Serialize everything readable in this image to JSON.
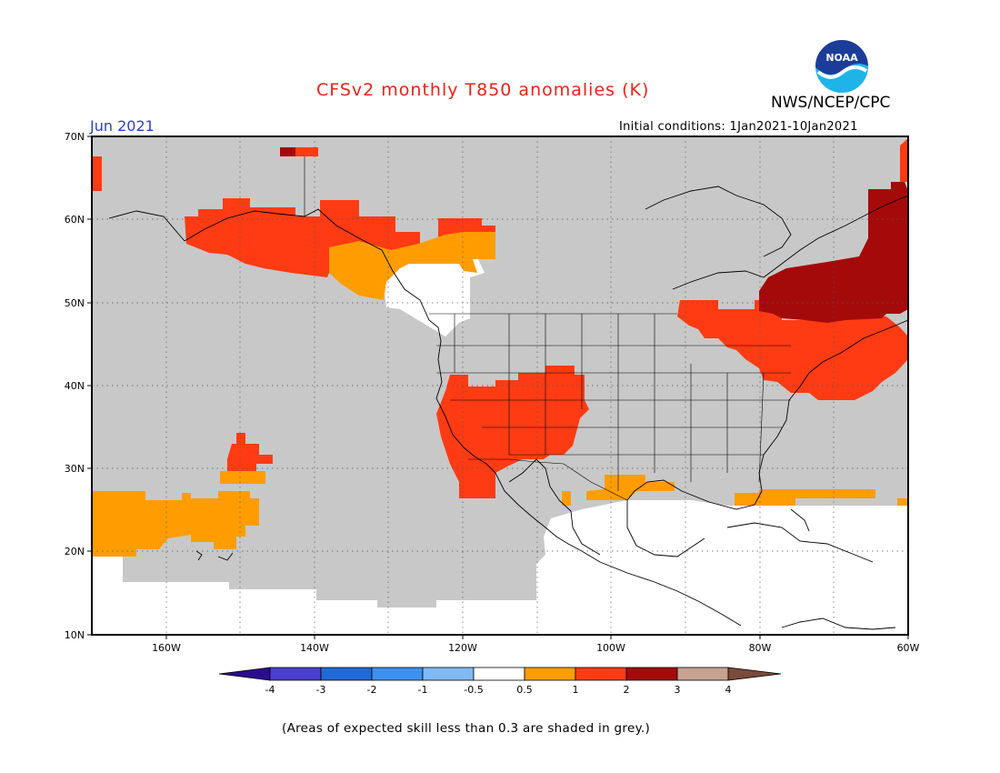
{
  "header": {
    "title": "CFSv2 monthly T850 anomalies (K)",
    "org": "NWS/NCEP/CPC",
    "logo_text": "NOAA",
    "month": "Jun 2021",
    "initial_conditions": "Initial conditions: 1Jan2021-10Jan2021"
  },
  "map": {
    "projection": "lat-lon",
    "lon_range": [
      -170,
      -60
    ],
    "lat_range": [
      10,
      70
    ],
    "lat_ticks": [
      "70N",
      "60N",
      "50N",
      "40N",
      "30N",
      "20N",
      "10N"
    ],
    "lon_ticks": [
      "160W",
      "140W",
      "120W",
      "100W",
      "80W",
      "60W"
    ],
    "grid": "dotted",
    "background_fill": "grey",
    "anomaly_regions": [
      {
        "category": "1 to 2",
        "color": "#ff3b14",
        "area": "Alaska / Gulf of Alaska"
      },
      {
        "category": "0.5 to 1",
        "color": "#ff9d00",
        "area": "British Columbia coast"
      },
      {
        "category": "-0.5 to 0.5",
        "color": "#ffffff",
        "area": "Pacific Northwest coast"
      },
      {
        "category": "1 to 2",
        "color": "#ff3b14",
        "area": "US Southwest"
      },
      {
        "category": "1 to 2",
        "color": "#ff3b14",
        "area": "Great Lakes / New England"
      },
      {
        "category": "2 to 3",
        "color": "#a50a0a",
        "area": "Quebec / Labrador"
      },
      {
        "category": "0.5 to 1",
        "color": "#ff9d00",
        "area": "Subtropical Pacific near Hawaii"
      },
      {
        "category": "1 to 2",
        "color": "#ff3b14",
        "area": "North of Hawaii"
      },
      {
        "category": "0.5 to 1",
        "color": "#ff9d00",
        "area": "Gulf of Mexico / Florida band"
      },
      {
        "category": "-0.5 to 0.5",
        "color": "#ffffff",
        "area": "Tropical Pacific and Caribbean"
      }
    ]
  },
  "colorbar": {
    "labels": [
      "-4",
      "-3",
      "-2",
      "-1",
      "-0.5",
      "0.5",
      "1",
      "2",
      "3",
      "4"
    ],
    "colors": [
      "#2a0d8c",
      "#4a3fcf",
      "#1f6ad8",
      "#3d90ef",
      "#7fbaf3",
      "#ffffff",
      "#ff9d00",
      "#ff3b14",
      "#a50a0a",
      "#c7a290",
      "#7a4a3a"
    ]
  },
  "footnote": "(Areas of expected skill less than 0.3 are shaded in grey.)",
  "colors": {
    "title": "#e8231a",
    "month": "#2a3fcf",
    "skill_grey": "#c8c8c8"
  }
}
